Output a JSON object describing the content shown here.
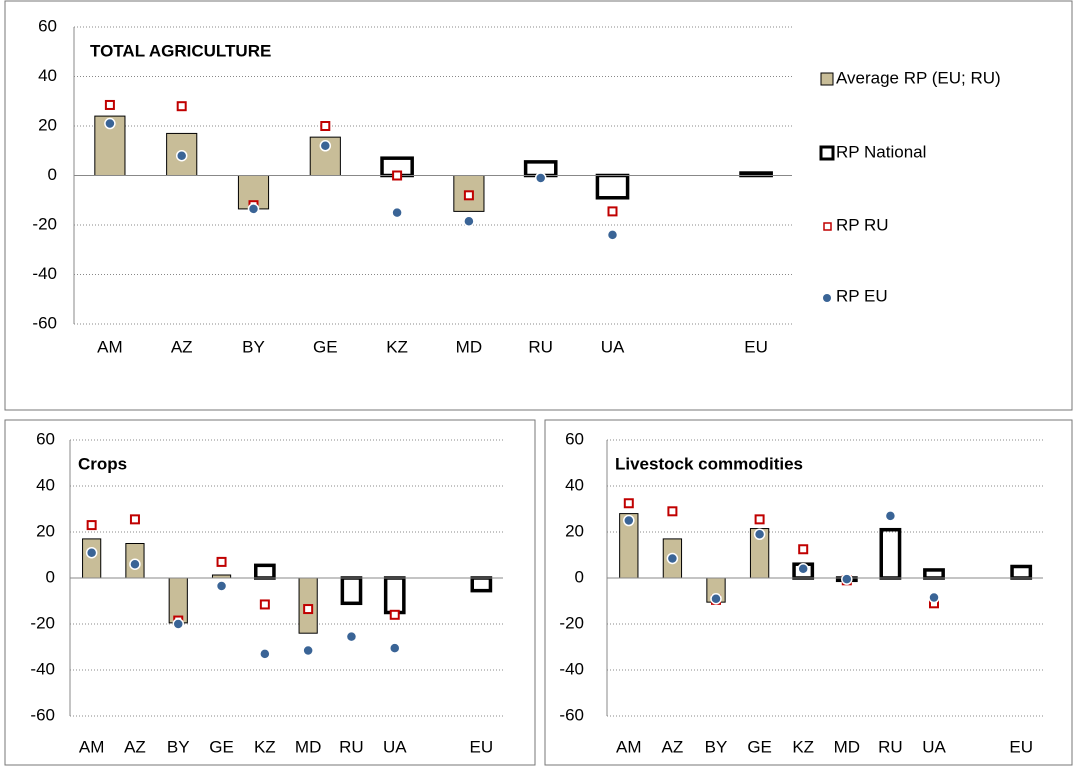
{
  "chart_data": [
    {
      "type": "bar",
      "title": "TOTAL AGRICULTURE",
      "grid": true,
      "legend": "right",
      "categories": [
        "AM",
        "AZ",
        "BY",
        "GE",
        "KZ",
        "MD",
        "RU",
        "UA",
        null,
        "EU"
      ],
      "ylim": [
        -60,
        60
      ],
      "yticks": [
        -60,
        -40,
        -20,
        0,
        20,
        40,
        60
      ],
      "series": [
        {
          "name": "Average RP (EU; RU)",
          "kind": "bar",
          "color": "#c8bd98",
          "values": [
            24,
            17,
            -13.5,
            15.5,
            null,
            -14.5,
            null,
            null,
            null,
            null
          ]
        },
        {
          "name": "RP National",
          "kind": "hollow-bar",
          "color": "#000000",
          "values": [
            null,
            null,
            null,
            null,
            7,
            null,
            5.5,
            -9,
            null,
            1
          ]
        },
        {
          "name": "RP RU",
          "kind": "square",
          "color": "#c00000",
          "values": [
            28.5,
            28,
            -12,
            20,
            0,
            -8,
            null,
            -14.5,
            null,
            null
          ]
        },
        {
          "name": "RP EU",
          "kind": "dot",
          "color": "#3a6496",
          "values": [
            21,
            8,
            -13.5,
            12,
            -15,
            -18.5,
            -1,
            -24,
            null,
            null
          ]
        }
      ]
    },
    {
      "type": "bar",
      "title": "Crops",
      "grid": true,
      "categories": [
        "AM",
        "AZ",
        "BY",
        "GE",
        "KZ",
        "MD",
        "RU",
        "UA",
        null,
        "EU"
      ],
      "ylim": [
        -60,
        60
      ],
      "yticks": [
        -60,
        -40,
        -20,
        0,
        20,
        40,
        60
      ],
      "series": [
        {
          "kind": "bar",
          "color": "#c8bd98",
          "values": [
            17,
            15,
            -19.5,
            1.3,
            null,
            -24,
            null,
            null,
            null,
            null
          ]
        },
        {
          "kind": "hollow-bar",
          "color": "#000000",
          "values": [
            null,
            null,
            null,
            null,
            5.5,
            null,
            -11,
            -15,
            null,
            -5.5
          ]
        },
        {
          "kind": "square",
          "color": "#c00000",
          "values": [
            23,
            25.5,
            -18.5,
            7,
            -11.5,
            -13.5,
            null,
            -16,
            null,
            null
          ]
        },
        {
          "kind": "dot",
          "color": "#3a6496",
          "values": [
            11,
            6,
            -20,
            -3.5,
            -33,
            -31.5,
            -25.5,
            -30.5,
            null,
            null
          ]
        }
      ]
    },
    {
      "type": "bar",
      "title": "Livestock commodities",
      "grid": true,
      "categories": [
        "AM",
        "AZ",
        "BY",
        "GE",
        "KZ",
        "MD",
        "RU",
        "UA",
        null,
        "EU"
      ],
      "ylim": [
        -60,
        60
      ],
      "yticks": [
        -60,
        -40,
        -20,
        0,
        20,
        40,
        60
      ],
      "series": [
        {
          "kind": "bar",
          "color": "#c8bd98",
          "values": [
            28,
            17,
            -10.5,
            21.5,
            null,
            -1,
            null,
            null,
            null,
            null
          ]
        },
        {
          "kind": "hollow-bar",
          "color": "#000000",
          "values": [
            null,
            null,
            null,
            null,
            6,
            -1,
            21,
            3.5,
            null,
            5
          ]
        },
        {
          "kind": "square",
          "color": "#c00000",
          "values": [
            32.5,
            29,
            -9.5,
            25.5,
            12.5,
            -1,
            null,
            -11,
            null,
            null
          ]
        },
        {
          "kind": "dot",
          "color": "#3a6496",
          "values": [
            25,
            8.5,
            -9,
            19,
            4,
            -0.5,
            27,
            -8.5,
            null,
            null
          ]
        }
      ]
    }
  ]
}
